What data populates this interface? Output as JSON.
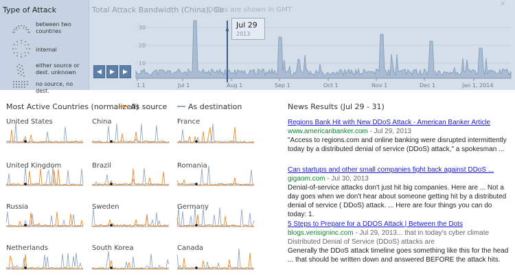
{
  "legend": {
    "title": "Type of Attack",
    "items": [
      {
        "label": "between two countries",
        "icon": "two-countries-icon"
      },
      {
        "label": "internal",
        "icon": "internal-ring-icon"
      },
      {
        "label": "either source or dest. unknown",
        "icon": "unknown-endpoint-icon"
      },
      {
        "label": "no source, no dest.",
        "icon": "no-source-dest-icon"
      }
    ]
  },
  "timeline": {
    "title": "Total Attack Bandwidth (China), Gb",
    "note": "Dates are shown in GMT",
    "top_close": "×",
    "y_ticks": [
      "30",
      "20",
      "10"
    ],
    "x_ticks": [
      "1.1",
      "Jul 1",
      "Aug 1",
      "Sep 1",
      "Oct 1",
      "Nov 1",
      "Dec 1",
      "Jan 1, 2014"
    ],
    "tooltip_date": "Jul 29",
    "tooltip_year": "2013",
    "buttons": {
      "back": "◀",
      "play": "▶",
      "forward": "▶"
    },
    "fill_color": "#a9bcd3",
    "line_color": "#7f99b8"
  },
  "countries": {
    "title": "Most Active Countries (normalized)",
    "source_label": "As source",
    "dest_label": "As destination",
    "source_color": "#f28a1e",
    "dest_color": "#8fa7c4",
    "items": [
      {
        "name": "United States"
      },
      {
        "name": "China"
      },
      {
        "name": "France"
      },
      {
        "name": "United Kingdom"
      },
      {
        "name": "Brazil"
      },
      {
        "name": "Romania"
      },
      {
        "name": "Russia"
      },
      {
        "name": "Sweden"
      },
      {
        "name": "Germany"
      },
      {
        "name": "Netherlands"
      },
      {
        "name": "South Korea"
      },
      {
        "name": "Canada"
      }
    ]
  },
  "news": {
    "title": "News Results (Jul 29 - 31)",
    "items": [
      {
        "headline": "Regions Bank Hit with New DDoS Attack - American Banker Article",
        "source": "www.americanbanker.com",
        "date": " - Jul 29, 2013",
        "snippet": "\"Access to regions.com and online banking were disrupted intermittently today by a distributed denial of service (DDoS) attack,\" a spokesman ..."
      },
      {
        "headline": "Can startups and other small companies fight back against DDoS ...",
        "source": "gigaom.com",
        "date": " - Jul 30, 2013",
        "snippet": "Denial-of-service attacks don't just hit big companies. Here are ... Not a day goes when we don't hear about someone getting hit by a distributed denial of service ( DDoS) attack. ... Here are four things you can do today: 1."
      },
      {
        "headline": "5 Steps to Prepare for a DDOS Attack | Between the Dots",
        "source": "blogs.verisigninc.com",
        "date": " - Jul 29, 2013... that in today's cyber climate Distributed Denial of Service (DDoS) attacks are",
        "snippet": "Generally the DDoS attack timeline goes something like this for the head ... that should be written down and answered BEFORE the attack hits."
      }
    ]
  }
}
